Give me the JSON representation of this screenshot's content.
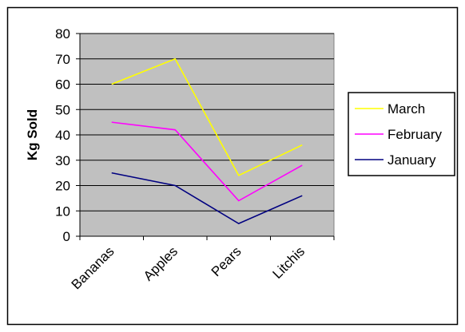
{
  "chart_data": {
    "type": "line",
    "title": "",
    "xlabel": "",
    "ylabel": "Kg Sold",
    "categories": [
      "Bananas",
      "Apples",
      "Pears",
      "Litchis"
    ],
    "ylim": [
      0,
      80
    ],
    "yticks": [
      0,
      10,
      20,
      30,
      40,
      50,
      60,
      70,
      80
    ],
    "grid": "horizontal",
    "legend_position": "right",
    "plot_background": "#c0c0c0",
    "series": [
      {
        "name": "March",
        "color": "#ffff00",
        "values": [
          60,
          70,
          24,
          36
        ]
      },
      {
        "name": "February",
        "color": "#ff00ff",
        "values": [
          45,
          42,
          14,
          28
        ]
      },
      {
        "name": "January",
        "color": "#000080",
        "values": [
          25,
          20,
          5,
          16
        ]
      }
    ]
  }
}
